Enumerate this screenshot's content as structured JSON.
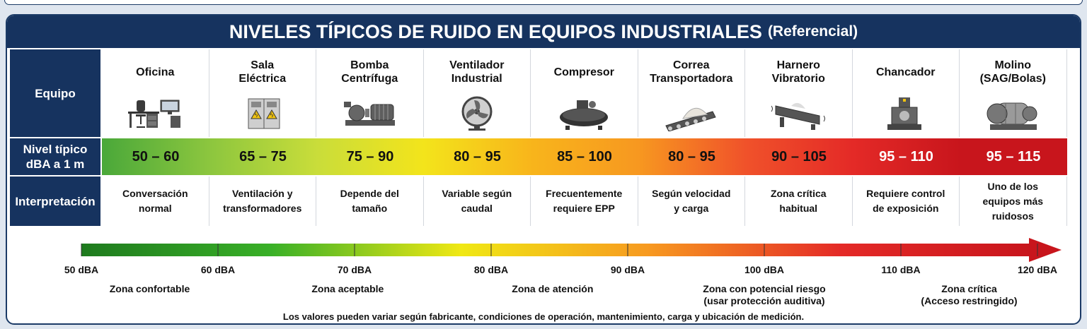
{
  "title": {
    "main": "NIVELES TÍPICOS DE RUIDO EN EQUIPOS INDUSTRIALES",
    "sub": "(Referencial)"
  },
  "row_headers": {
    "equipo": "Equipo",
    "nivel": "Nivel típico\ndBA a 1 m",
    "interpretacion": "Interpretación"
  },
  "equipment": [
    {
      "name": "Oficina",
      "icon": "office-desk-icon",
      "level": "50 – 60",
      "color": "#4aa83a",
      "text_color": "#111111",
      "interpretation": "Conversación\nnormal"
    },
    {
      "name": "Sala\nEléctrica",
      "icon": "electrical-cabinet-icon",
      "level": "65 – 75",
      "color": "#8cc63e",
      "text_color": "#111111",
      "interpretation": "Ventilación y\ntransformadores"
    },
    {
      "name": "Bomba\nCentrífuga",
      "icon": "centrifugal-pump-icon",
      "level": "75 – 90",
      "color": "#c9dd3a",
      "text_color": "#111111",
      "interpretation": "Depende del\ntamaño"
    },
    {
      "name": "Ventilador\nIndustrial",
      "icon": "industrial-fan-icon",
      "level": "80 – 95",
      "color": "#f3e41b",
      "text_color": "#111111",
      "interpretation": "Variable según\ncaudal"
    },
    {
      "name": "Compresor",
      "icon": "compressor-icon",
      "level": "85 – 100",
      "color": "#f8b51b",
      "text_color": "#111111",
      "interpretation": "Frecuentemente\nrequiere EPP"
    },
    {
      "name": "Correa\nTransportadora",
      "icon": "conveyor-belt-icon",
      "level": "80 – 95",
      "color": "#f79820",
      "text_color": "#111111",
      "interpretation": "Según velocidad\ny carga"
    },
    {
      "name": "Harnero\nVibratorio",
      "icon": "vibrating-screen-icon",
      "level": "90 – 105",
      "color": "#f0522a",
      "text_color": "#111111",
      "interpretation": "Zona crítica\nhabitual"
    },
    {
      "name": "Chancador",
      "icon": "crusher-icon",
      "level": "95 – 110",
      "color": "#e42a27",
      "text_color": "#ffffff",
      "interpretation": "Requiere control\nde exposición"
    },
    {
      "name": "Molino\n(SAG/Bolas)",
      "icon": "mill-icon",
      "level": "95 – 115",
      "color": "#c8151c",
      "text_color": "#ffffff",
      "interpretation": "Uno de los\nequipos más\nruidosos"
    }
  ],
  "scale": {
    "ticks": [
      {
        "value": 50,
        "label": "50 dBA"
      },
      {
        "value": 60,
        "label": "60 dBA"
      },
      {
        "value": 70,
        "label": "70 dBA"
      },
      {
        "value": 80,
        "label": "80 dBA"
      },
      {
        "value": 90,
        "label": "90 dBA"
      },
      {
        "value": 100,
        "label": "100 dBA"
      },
      {
        "value": 110,
        "label": "110 dBA"
      },
      {
        "value": 120,
        "label": "120 dBA"
      }
    ],
    "zones": [
      {
        "center": 55,
        "label": "Zona confortable"
      },
      {
        "center": 69.5,
        "label": "Zona aceptable"
      },
      {
        "center": 84.5,
        "label": "Zona de atención"
      },
      {
        "center": 100,
        "label": "Zona con potencial riesgo\n(usar protección auditiva)"
      },
      {
        "center": 115,
        "label": "Zona crítica\n(Acceso restringido)"
      }
    ],
    "gradient_colors": [
      "#1e7a1e",
      "#39b027",
      "#f0e814",
      "#f79820",
      "#e42a27",
      "#c8151c"
    ]
  },
  "note": "Los valores pueden variar según fabricante, condiciones de operación, mantenimiento, carga y ubicación de medición."
}
